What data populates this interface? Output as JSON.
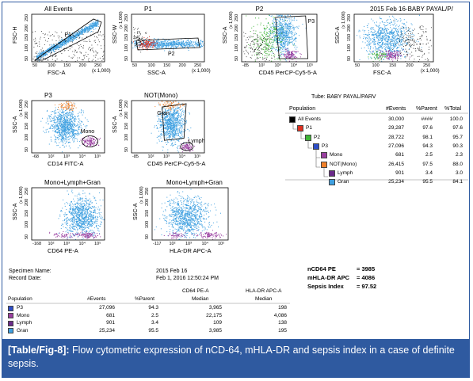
{
  "plots": [
    {
      "title": "All Events",
      "x_label": "FSC-A",
      "y_label": "FSC-H",
      "x_scale": "(x 1,000)",
      "y_scale": "",
      "x_ticks": [
        "50",
        "100",
        "150",
        "200",
        "250"
      ],
      "y_ticks": [
        "50",
        "100",
        "150",
        "200",
        "250"
      ],
      "gates": [
        "P1"
      ]
    },
    {
      "title": "P1",
      "x_label": "SSC-A",
      "y_label": "SSC-W",
      "x_scale": "(x 1,000)",
      "y_scale": "(x 1,000)",
      "x_ticks": [
        "50",
        "100",
        "150",
        "200",
        "250"
      ],
      "y_ticks": [
        "50",
        "100",
        "150",
        "200",
        "250"
      ],
      "gates": [
        "P2"
      ]
    },
    {
      "title": "P2",
      "x_label": "CD45 PerCP-Cy5-5-A",
      "y_label": "SSC-A",
      "x_scale": "",
      "y_scale": "(x 1,000)",
      "x_ticks": [
        "-85",
        "10²",
        "10³",
        "10⁴",
        "10⁵"
      ],
      "y_ticks": [
        "50",
        "100",
        "150",
        "200",
        "250"
      ],
      "gates": [
        "P3"
      ]
    },
    {
      "title": "2015 Feb 16-BABY PAYAL/P/",
      "x_label": "FSC-A",
      "y_label": "SSC-A",
      "x_scale": "(x 1,000)",
      "y_scale": "(x 1,000)",
      "x_ticks": [
        "50",
        "100",
        "150",
        "200",
        "250"
      ],
      "y_ticks": [
        "50",
        "100",
        "150",
        "200",
        "250"
      ],
      "gates": []
    },
    {
      "title": "P3",
      "x_label": "CD14 FITC-A",
      "y_label": "SSC-A",
      "x_scale": "",
      "y_scale": "(x 1,000)",
      "x_ticks": [
        "-68",
        "10²",
        "10³",
        "10⁴",
        "10⁵"
      ],
      "y_ticks": [
        "50",
        "100",
        "150",
        "200",
        "250"
      ],
      "gates": [
        "Mono"
      ]
    },
    {
      "title": "NOT(Mono)",
      "x_label": "CD45 PerCP-Cy5-5-A",
      "y_label": "SSC-A",
      "x_scale": "",
      "y_scale": "(x 1,000)",
      "x_ticks": [
        "-85",
        "10²",
        "10³",
        "10⁴",
        "10⁵"
      ],
      "y_ticks": [
        "50",
        "100",
        "150",
        "200",
        "250"
      ],
      "gates": [
        "Gran",
        "Lymph"
      ]
    },
    {
      "title": "Mono+Lymph+Gran",
      "x_label": "CD64 PE-A",
      "y_label": "SSC-A",
      "x_scale": "",
      "y_scale": "(x 1,000)",
      "x_ticks": [
        "-168",
        "10²",
        "10³",
        "10⁴",
        "10⁵"
      ],
      "y_ticks": [
        "50",
        "100",
        "150",
        "200",
        "250"
      ],
      "gates": []
    },
    {
      "title": "Mono+Lymph+Gran",
      "x_label": "HLA-DR APC-A",
      "y_label": "SSC-A",
      "x_scale": "",
      "y_scale": "(x 1,000)",
      "x_ticks": [
        "-117",
        "10²",
        "10³",
        "10⁴",
        "10⁵"
      ],
      "y_ticks": [
        "50",
        "100",
        "150",
        "200",
        "250"
      ],
      "gates": []
    }
  ],
  "hierarchy": {
    "tube_label": "Tube:  BABY PAYAL/PARV",
    "headers": [
      "Population",
      "#Events",
      "%Parent",
      "%Total"
    ],
    "rows": [
      {
        "name": "All Events",
        "events": "30,000",
        "parent": "####",
        "total": "100.0",
        "color": "#000000"
      },
      {
        "name": "P1",
        "events": "29,287",
        "parent": "97.6",
        "total": "97.6",
        "color": "#e03020"
      },
      {
        "name": "P2",
        "events": "28,722",
        "parent": "98.1",
        "total": "95.7",
        "color": "#3fb536"
      },
      {
        "name": "P3",
        "events": "27,096",
        "parent": "94.3",
        "total": "90.3",
        "color": "#2e4fc8"
      },
      {
        "name": "Mono",
        "events": "681",
        "parent": "2.5",
        "total": "2.3",
        "color": "#9a3fa0"
      },
      {
        "name": "NOT(Mono)",
        "events": "26,415",
        "parent": "97.5",
        "total": "88.0",
        "color": "#f0802a"
      },
      {
        "name": "Lymph",
        "events": "901",
        "parent": "3.4",
        "total": "3.0",
        "color": "#6b2a8a"
      },
      {
        "name": "Gran",
        "events": "25,234",
        "parent": "95.5",
        "total": "84.1",
        "color": "#3fa0e0"
      }
    ]
  },
  "specimen": {
    "name_label": "Specimen Name:",
    "date_label": "Record Date:",
    "name_value": "2015 Feb 16",
    "date_value": "Feb 1, 2016 12:50:24 PM"
  },
  "summary": [
    {
      "label": "nCD64 PE",
      "value": "= 3985"
    },
    {
      "label": "mHLA-DR APC",
      "value": "= 4086"
    },
    {
      "label": "Sepsis Index",
      "value": "= 97.52"
    }
  ],
  "stats_table": {
    "headers": [
      "Population",
      "#Events",
      "%Parent",
      "CD64 PE-A\nMedian",
      "HLA-DR APC-A\nMedian"
    ],
    "header_line1": [
      "",
      "",
      "",
      "CD64 PE-A",
      "HLA-DR APC-A"
    ],
    "header_line2": [
      "Population",
      "#Events",
      "%Parent",
      "Median",
      "Median"
    ],
    "rows": [
      {
        "name": "P3",
        "events": "27,096",
        "parent": "94.3",
        "cd64": "3,965",
        "hladr": "198",
        "color": "#2e4fc8"
      },
      {
        "name": "Mono",
        "events": "681",
        "parent": "2.5",
        "cd64": "22,175",
        "hladr": "4,086",
        "color": "#9a3fa0"
      },
      {
        "name": "Lymph",
        "events": "901",
        "parent": "3.4",
        "cd64": "109",
        "hladr": "138",
        "color": "#6b2a8a"
      },
      {
        "name": "Gran",
        "events": "25,234",
        "parent": "95.5",
        "cd64": "3,985",
        "hladr": "195",
        "color": "#3fa0e0"
      }
    ]
  },
  "caption": {
    "tag": "[Table/Fig-8]:",
    "text": " Flow cytometric expression of nCD-64, mHLA-DR and sepsis index in a case of definite sepsis."
  },
  "chart_data": {
    "type": "table",
    "title": "",
    "columns": [
      "Population",
      "#Events",
      "%Parent",
      "CD64 PE-A Median",
      "HLA-DR APC-A Median"
    ],
    "rows": [
      [
        "P3",
        27096,
        94.3,
        3965,
        198
      ],
      [
        "Mono",
        681,
        2.5,
        22175,
        4086
      ],
      [
        "Lymph",
        901,
        3.4,
        109,
        138
      ],
      [
        "Gran",
        25234,
        95.5,
        3985,
        195
      ]
    ],
    "hierarchy_rows": [
      [
        "All Events",
        30000,
        null,
        100.0
      ],
      [
        "P1",
        29287,
        97.6,
        97.6
      ],
      [
        "P2",
        28722,
        98.1,
        95.7
      ],
      [
        "P3",
        27096,
        94.3,
        90.3
      ],
      [
        "Mono",
        681,
        2.5,
        2.3
      ],
      [
        "NOT(Mono)",
        26415,
        97.5,
        88.0
      ],
      [
        "Lymph",
        901,
        3.4,
        3.0
      ],
      [
        "Gran",
        25234,
        95.5,
        84.1
      ]
    ],
    "summary": {
      "nCD64 PE": 3985,
      "mHLA-DR APC": 4086,
      "Sepsis Index": 97.52
    },
    "colors": {
      "gran": "#3fa0e0",
      "mono": "#9a3fa0",
      "lymph": "#6b2a8a",
      "not_mono": "#f0802a",
      "p1": "#e03020",
      "p2": "#3fb536",
      "p3": "#2e4fc8",
      "debris": "#000000"
    }
  }
}
